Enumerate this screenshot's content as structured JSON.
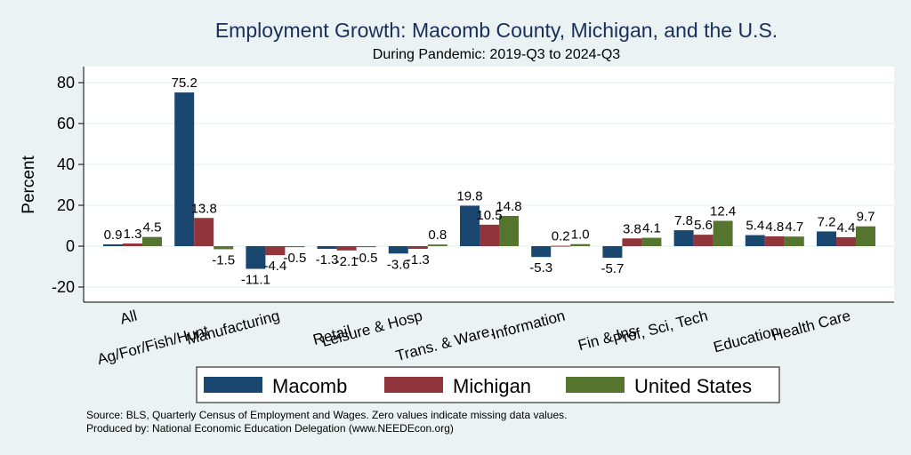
{
  "chart_data": {
    "type": "bar",
    "title": "Employment Growth: Macomb County, Michigan, and the U.S.",
    "subtitle": "During Pandemic: 2019-Q3 to 2024-Q3",
    "xlabel": "",
    "ylabel": "Percent",
    "ylim": [
      -27,
      88
    ],
    "yticks": [
      80,
      60,
      40,
      20,
      0,
      -20
    ],
    "grid": true,
    "legend_position": "bottom",
    "categories": [
      "All",
      "Ag/For/Fish/Hunt",
      "Manufacturing",
      "Retail",
      "Leisure & Hosp",
      "Trans. & Ware.",
      "Information",
      "Fin & Ins",
      "Prof, Sci, Tech",
      "Education",
      "Health Care"
    ],
    "series": [
      {
        "name": "Macomb",
        "color": "#1a476f",
        "values": [
          0.9,
          75.2,
          -11.1,
          -1.3,
          -3.6,
          19.8,
          -5.3,
          -5.7,
          7.8,
          5.4,
          7.2
        ]
      },
      {
        "name": "Michigan",
        "color": "#90353b",
        "values": [
          1.3,
          13.8,
          -4.4,
          -2.1,
          -1.3,
          10.5,
          0.2,
          3.8,
          5.6,
          4.8,
          4.4
        ]
      },
      {
        "name": "United States",
        "color": "#55752f",
        "values": [
          4.5,
          -1.5,
          -0.5,
          -0.5,
          0.8,
          14.8,
          1.0,
          4.1,
          12.4,
          4.7,
          9.7
        ]
      }
    ],
    "notes": [
      "Source: BLS, Quarterly Census of Employment and Wages. Zero values indicate missing data values.",
      "Produced by: National Economic Education Delegation (www.NEEDEcon.org)"
    ]
  }
}
